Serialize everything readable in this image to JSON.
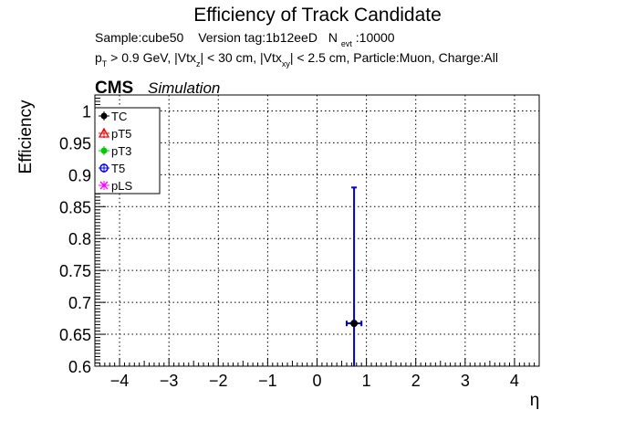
{
  "chart_data": {
    "type": "scatter",
    "title": "Efficiency of Track Candidate",
    "subtitle": {
      "line1": {
        "sample": "Sample:cube50",
        "version": "Version tag:1b12eeD",
        "nevt_prefix": "N",
        "nevt_sub": "evt",
        "nevt_suffix": ":10000"
      },
      "line2": [
        {
          "t": "p",
          "s": "n"
        },
        {
          "t": "T",
          "s": "sub"
        },
        {
          "t": " > 0.9 GeV, |Vtx",
          "s": "n"
        },
        {
          "t": "z",
          "s": "sub"
        },
        {
          "t": "| < 30 cm, |Vtx",
          "s": "n"
        },
        {
          "t": "xy",
          "s": "sub"
        },
        {
          "t": "| < 2.5 cm, Particle:Muon, Charge:All",
          "s": "n"
        }
      ]
    },
    "cms_label": "CMS",
    "simulation_label": "Simulation",
    "xlabel": "η",
    "ylabel": "Efficiency",
    "xlim": [
      -4.5,
      4.5
    ],
    "ylim": [
      0.6,
      1.025
    ],
    "xticks": [
      -4,
      -3,
      -2,
      -1,
      0,
      1,
      2,
      3,
      4
    ],
    "xtick_labels": [
      "−4",
      "−3",
      "−2",
      "−1",
      "0",
      "1",
      "2",
      "3",
      "4"
    ],
    "yticks": [
      0.6,
      0.65,
      0.7,
      0.75,
      0.8,
      0.85,
      0.9,
      0.95,
      1.0
    ],
    "ytick_labels": [
      "0.6",
      "0.65",
      "0.7",
      "0.75",
      "0.8",
      "0.85",
      "0.9",
      "0.95",
      "1"
    ],
    "grid": true,
    "legend_position": "top-left",
    "series": [
      {
        "name": "TC",
        "color": "#000000",
        "marker": "circle",
        "points": [
          {
            "x": 0.75,
            "xerr": 0.15,
            "y": 0.667,
            "yerr_low": 0.067,
            "yerr_high": 0.213
          }
        ]
      },
      {
        "name": "pT5",
        "color": "#ff0000",
        "marker": "triangle-open",
        "points": []
      },
      {
        "name": "pT3",
        "color": "#00cc00",
        "marker": "circle",
        "points": []
      },
      {
        "name": "T5",
        "color": "#0000ff",
        "marker": "circle-open",
        "points": []
      },
      {
        "name": "pLS",
        "color": "#ff00ff",
        "marker": "star",
        "points": []
      }
    ],
    "overlay_errorbar_color": "#0000cc"
  }
}
